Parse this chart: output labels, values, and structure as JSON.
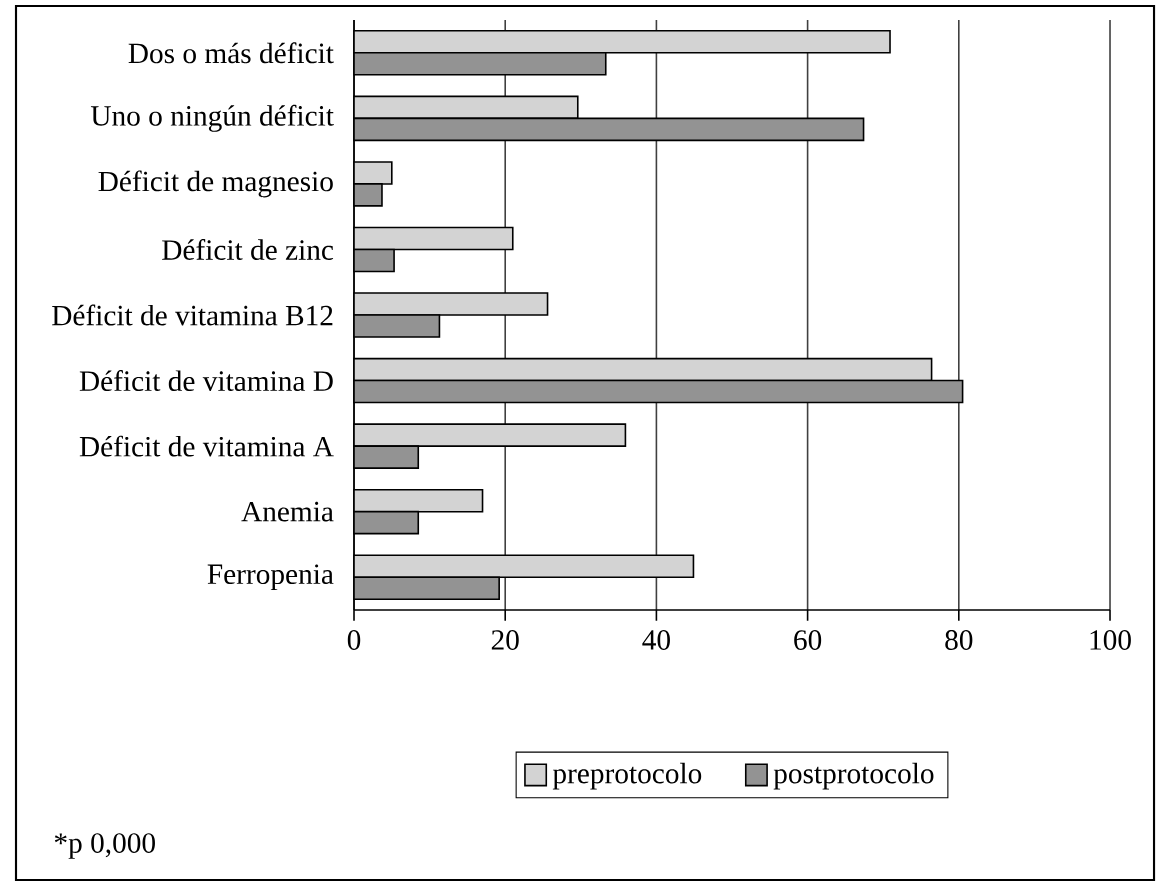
{
  "chart_data": {
    "type": "bar",
    "orientation": "horizontal",
    "categories": [
      "Dos o más déficit",
      "Uno o ningún déficit",
      "Déficit de magnesio",
      "Déficit de zinc",
      "Déficit de vitamina B12",
      "Déficit de vitamina D",
      "Déficit de vitamina A",
      "Anemia",
      "Ferropenia"
    ],
    "series": [
      {
        "name": "preprotocolo",
        "color": "#d3d3d3",
        "values": [
          70.9,
          29.6,
          5.0,
          21.0,
          25.6,
          76.4,
          35.9,
          17.0,
          44.9
        ]
      },
      {
        "name": "postprotocolo",
        "color": "#939393",
        "values": [
          33.3,
          67.4,
          3.7,
          5.3,
          11.3,
          80.5,
          8.5,
          8.5,
          19.2
        ]
      }
    ],
    "xlim": [
      0,
      100
    ],
    "xticks": [
      0,
      20,
      40,
      60,
      80,
      100
    ],
    "grid": "x",
    "legend": "bottom",
    "annotations": [
      "*p 0,000"
    ]
  }
}
